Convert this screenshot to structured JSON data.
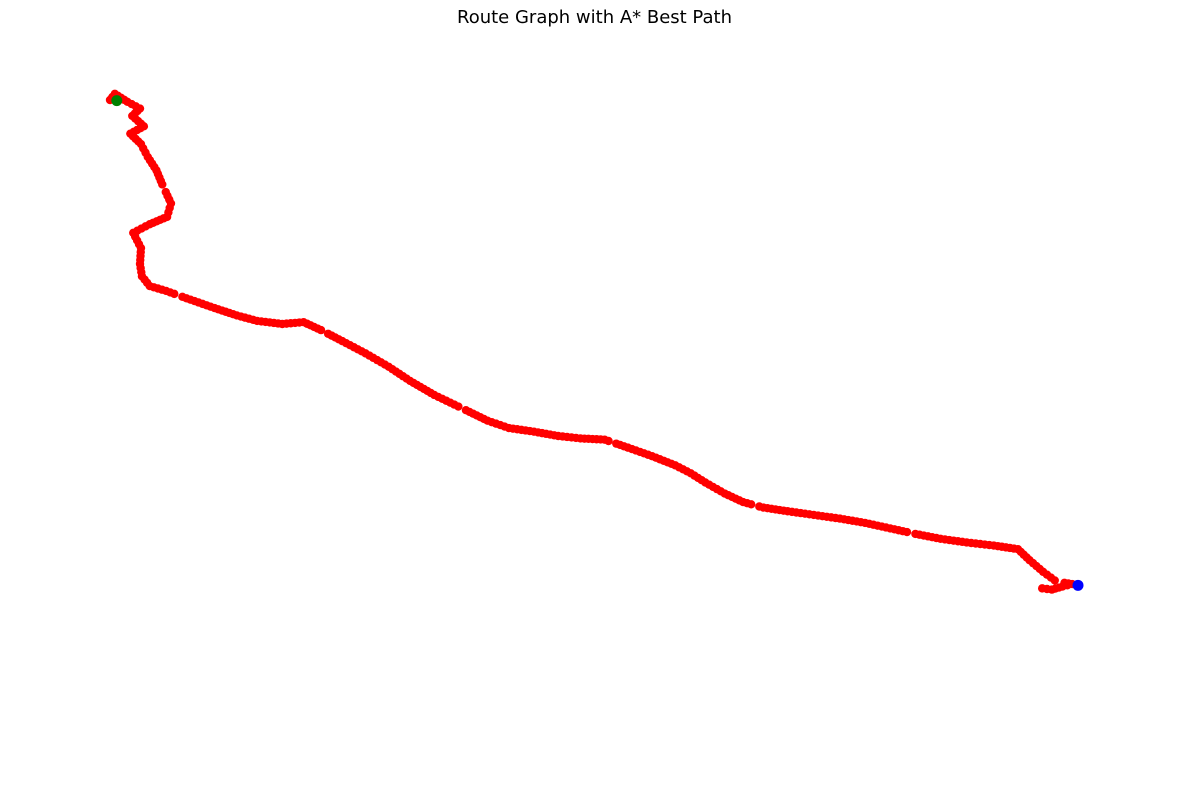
{
  "chart_data": {
    "type": "scatter",
    "title": "Route Graph with A* Best Path",
    "xlabel": "",
    "ylabel": "",
    "axes_visible": false,
    "grid": false,
    "legend": "none",
    "xlim": [
      0,
      100
    ],
    "ylim": [
      0,
      100
    ],
    "series": [
      {
        "role": "path",
        "color": "#ff0000",
        "points": [
          [
            0,
            100
          ],
          [
            0.5,
            101
          ],
          [
            1.8,
            99.7
          ],
          [
            3.1,
            98.6
          ],
          [
            2.3,
            97.4
          ],
          [
            3.5,
            95.7
          ],
          [
            2.1,
            94.5
          ],
          [
            3.2,
            92.8
          ],
          [
            3.9,
            90.7
          ],
          [
            4.8,
            88.5
          ],
          [
            5.4,
            86.2
          ],
          [
            6.3,
            83.1
          ],
          [
            5.9,
            80.9
          ],
          [
            4.1,
            79.7
          ],
          [
            2.4,
            78.3
          ],
          [
            3.2,
            75.8
          ],
          [
            3.1,
            73.2
          ],
          [
            3.3,
            71.2
          ],
          [
            4.1,
            69.6
          ],
          [
            5.8,
            68.8
          ],
          [
            7.9,
            67.6
          ],
          [
            10.8,
            66.0
          ],
          [
            13.1,
            64.8
          ],
          [
            15.2,
            63.9
          ],
          [
            17.8,
            63.4
          ],
          [
            20.0,
            63.7
          ],
          [
            21.8,
            62.4
          ],
          [
            24.0,
            60.6
          ],
          [
            26.4,
            58.6
          ],
          [
            28.8,
            56.4
          ],
          [
            31.0,
            54.1
          ],
          [
            33.5,
            51.8
          ],
          [
            36.4,
            49.6
          ],
          [
            39.0,
            47.6
          ],
          [
            41.2,
            46.4
          ],
          [
            43.8,
            45.8
          ],
          [
            46.3,
            45.1
          ],
          [
            48.6,
            44.7
          ],
          [
            51.1,
            44.5
          ],
          [
            53.5,
            43.2
          ],
          [
            56.0,
            41.8
          ],
          [
            58.4,
            40.3
          ],
          [
            60.0,
            39.0
          ],
          [
            61.5,
            37.5
          ],
          [
            63.5,
            35.7
          ],
          [
            65.4,
            34.3
          ],
          [
            67.5,
            33.4
          ],
          [
            70.0,
            32.8
          ],
          [
            72.7,
            32.2
          ],
          [
            75.4,
            31.6
          ],
          [
            78.0,
            30.9
          ],
          [
            80.6,
            30.0
          ],
          [
            83.2,
            29.1
          ],
          [
            85.8,
            28.3
          ],
          [
            88.5,
            27.7
          ],
          [
            91.3,
            27.2
          ],
          [
            93.8,
            26.6
          ],
          [
            95.0,
            24.8
          ],
          [
            96.4,
            22.9
          ],
          [
            97.6,
            21.5
          ],
          [
            98.2,
            21.2
          ],
          [
            99.4,
            20.9
          ],
          [
            98.4,
            20.5
          ],
          [
            97.3,
            20.0
          ],
          [
            96.3,
            20.2
          ]
        ]
      },
      {
        "role": "start",
        "color": "#008000",
        "points": [
          [
            0.7,
            99.9
          ]
        ]
      },
      {
        "role": "goal",
        "color": "#0000ff",
        "points": [
          [
            100,
            20.7
          ]
        ]
      }
    ]
  }
}
